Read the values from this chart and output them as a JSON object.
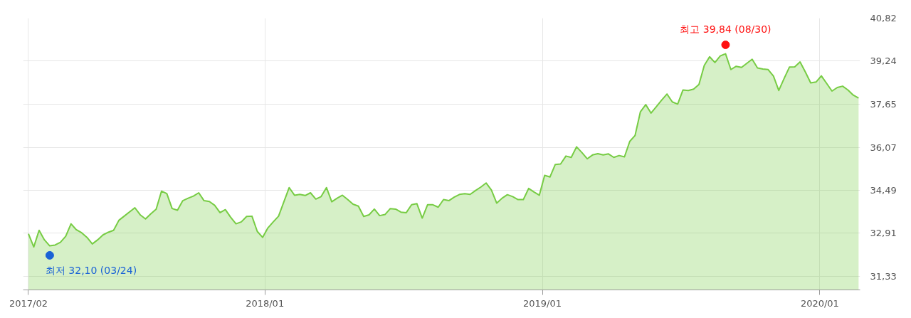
{
  "chart_data": {
    "type": "area",
    "grid": true,
    "line_style": "solid",
    "xlim": [
      "2017-02-17",
      "2020-02-23"
    ],
    "xticks": [
      {
        "value": "2017-02-24",
        "label": "2017/02"
      },
      {
        "value": "2018-01-01",
        "label": "2018/01"
      },
      {
        "value": "2019-01-01",
        "label": "2019/01"
      },
      {
        "value": "2020-01-01",
        "label": "2020/01"
      }
    ],
    "ylim": [
      30.83,
      40.82
    ],
    "yticks": [
      {
        "value": 31.33,
        "label": "31,33"
      },
      {
        "value": 32.91,
        "label": "32,91"
      },
      {
        "value": 34.49,
        "label": "34,49"
      },
      {
        "value": 36.07,
        "label": "36,07"
      },
      {
        "value": 37.65,
        "label": "37,65"
      },
      {
        "value": 39.24,
        "label": "39,24"
      },
      {
        "value": 40.82,
        "label": "40,82"
      }
    ],
    "series": [
      {
        "color": "#77cc44",
        "x": [
          "2017-02-24",
          "2017-03-03",
          "2017-03-10",
          "2017-03-17",
          "2017-03-24",
          "2017-03-31",
          "2017-04-07",
          "2017-04-14",
          "2017-04-21",
          "2017-04-28",
          "2017-05-05",
          "2017-05-12",
          "2017-05-19",
          "2017-05-26",
          "2017-06-02",
          "2017-06-09",
          "2017-06-16",
          "2017-06-23",
          "2017-07-14",
          "2017-07-21",
          "2017-07-28",
          "2017-08-04",
          "2017-08-11",
          "2017-08-18",
          "2017-08-25",
          "2017-09-01",
          "2017-09-08",
          "2017-09-15",
          "2017-09-22",
          "2017-09-29",
          "2017-10-06",
          "2017-10-13",
          "2017-10-20",
          "2017-10-27",
          "2017-11-03",
          "2017-11-10",
          "2017-11-17",
          "2017-11-24",
          "2017-12-01",
          "2017-12-08",
          "2017-12-15",
          "2017-12-22",
          "2017-12-29",
          "2018-01-05",
          "2018-01-12",
          "2018-01-19",
          "2018-01-26",
          "2018-02-02",
          "2018-02-09",
          "2018-02-16",
          "2018-02-23",
          "2018-03-02",
          "2018-03-09",
          "2018-03-16",
          "2018-03-23",
          "2018-03-30",
          "2018-04-06",
          "2018-04-13",
          "2018-04-20",
          "2018-04-27",
          "2018-05-04",
          "2018-05-11",
          "2018-05-18",
          "2018-05-25",
          "2018-06-01",
          "2018-06-08",
          "2018-06-15",
          "2018-06-22",
          "2018-06-29",
          "2018-07-06",
          "2018-07-13",
          "2018-07-20",
          "2018-07-27",
          "2018-08-03",
          "2018-08-10",
          "2018-08-17",
          "2018-08-24",
          "2018-08-31",
          "2018-09-07",
          "2018-09-14",
          "2018-09-21",
          "2018-09-28",
          "2018-10-05",
          "2018-10-12",
          "2018-10-19",
          "2018-10-26",
          "2018-11-02",
          "2018-11-09",
          "2018-11-16",
          "2018-11-23",
          "2018-11-30",
          "2018-12-07",
          "2018-12-14",
          "2018-12-21",
          "2018-12-28",
          "2019-01-04",
          "2019-01-11",
          "2019-01-18",
          "2019-01-25",
          "2019-02-01",
          "2019-02-08",
          "2019-02-15",
          "2019-02-22",
          "2019-03-01",
          "2019-03-08",
          "2019-03-15",
          "2019-03-22",
          "2019-03-29",
          "2019-04-05",
          "2019-04-12",
          "2019-04-19",
          "2019-04-26",
          "2019-05-03",
          "2019-05-10",
          "2019-05-17",
          "2019-05-24",
          "2019-05-31",
          "2019-06-07",
          "2019-06-14",
          "2019-06-21",
          "2019-06-28",
          "2019-07-05",
          "2019-07-12",
          "2019-07-19",
          "2019-07-26",
          "2019-08-02",
          "2019-08-09",
          "2019-08-16",
          "2019-08-23",
          "2019-08-30",
          "2019-09-06",
          "2019-09-13",
          "2019-09-20",
          "2019-09-27",
          "2019-10-04",
          "2019-10-11",
          "2019-10-18",
          "2019-10-25",
          "2019-11-01",
          "2019-11-08",
          "2019-11-15",
          "2019-11-22",
          "2019-11-29",
          "2019-12-06",
          "2019-12-13",
          "2019-12-20",
          "2019-12-27",
          "2020-01-03",
          "2020-01-10",
          "2020-01-17",
          "2020-01-24",
          "2020-01-31",
          "2020-02-07",
          "2020-02-14",
          "2020-02-21"
        ],
        "values": [
          32.89,
          32.41,
          33.02,
          32.67,
          32.45,
          32.48,
          32.58,
          32.8,
          33.26,
          33.04,
          32.93,
          32.76,
          32.52,
          32.67,
          32.85,
          32.95,
          33.02,
          33.39,
          33.85,
          33.59,
          33.44,
          33.63,
          33.8,
          34.46,
          34.37,
          33.82,
          33.76,
          34.11,
          34.2,
          34.28,
          34.4,
          34.11,
          34.08,
          33.94,
          33.67,
          33.78,
          33.5,
          33.26,
          33.33,
          33.53,
          33.54,
          32.98,
          32.76,
          33.11,
          33.33,
          33.54,
          34.07,
          34.59,
          34.31,
          34.34,
          34.3,
          34.4,
          34.17,
          34.26,
          34.59,
          34.07,
          34.2,
          34.31,
          34.15,
          33.98,
          33.91,
          33.53,
          33.59,
          33.8,
          33.56,
          33.6,
          33.82,
          33.8,
          33.69,
          33.67,
          33.96,
          34.0,
          33.47,
          33.96,
          33.96,
          33.87,
          34.15,
          34.11,
          34.24,
          34.34,
          34.37,
          34.34,
          34.48,
          34.61,
          34.76,
          34.5,
          34.02,
          34.2,
          34.33,
          34.26,
          34.15,
          34.15,
          34.56,
          34.43,
          34.31,
          35.04,
          34.98,
          35.44,
          35.46,
          35.75,
          35.7,
          36.09,
          35.88,
          35.65,
          35.79,
          35.84,
          35.79,
          35.83,
          35.7,
          35.77,
          35.72,
          36.29,
          36.51,
          37.38,
          37.64,
          37.33,
          37.57,
          37.81,
          38.03,
          37.74,
          37.66,
          38.18,
          38.16,
          38.21,
          38.38,
          39.08,
          39.4,
          39.19,
          39.43,
          39.51,
          38.93,
          39.05,
          39.01,
          39.16,
          39.31,
          38.99,
          38.95,
          38.93,
          38.69,
          38.16,
          38.6,
          39.02,
          39.03,
          39.21,
          38.84,
          38.44,
          38.47,
          38.7,
          38.42,
          38.14,
          38.27,
          38.32,
          38.18,
          37.99,
          37.88
        ]
      },
      {
        "type": "scatter",
        "marker": "circle",
        "color": "#ff1111",
        "x": [
          "2019-08-30"
        ],
        "values": [
          39.84
        ]
      },
      {
        "type": "scatter",
        "marker": "circle",
        "color": "#1a62d6",
        "x": [
          "2017-03-24"
        ],
        "values": [
          32.1
        ]
      }
    ],
    "annotations": [
      {
        "text": "최고 39,84 (08/30)",
        "x": "2019-08-30",
        "y": 39.84
      },
      {
        "text": "최저 32,10 (03/24)",
        "x": "2017-03-24",
        "y": 32.1
      }
    ]
  }
}
